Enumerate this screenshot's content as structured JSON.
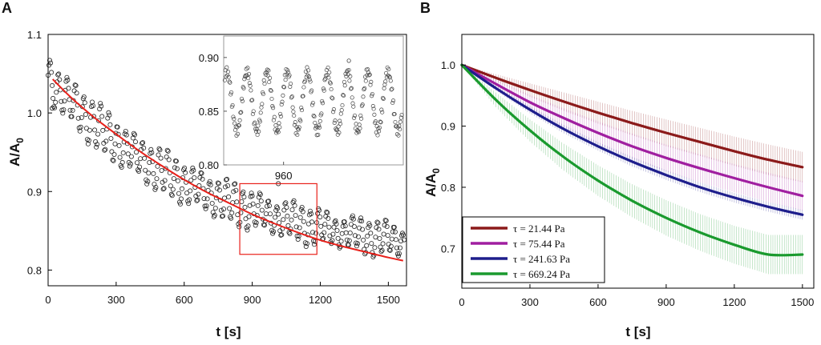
{
  "chart_data": [
    {
      "panel": "A",
      "type": "scatter",
      "xlabel": "t [s]",
      "ylabel_main": "A/A",
      "ylabel_sub": "0",
      "xlim": [
        0,
        1580
      ],
      "ylim": [
        0.78,
        1.1
      ],
      "xticks": [
        0,
        300,
        600,
        900,
        1200,
        1500
      ],
      "yticks": [
        0.8,
        0.9,
        1.0,
        1.1
      ],
      "ytick_labels": [
        "0.8",
        "0.9",
        "1.0",
        "1.1"
      ],
      "series": [
        {
          "name": "data",
          "kind": "oscillating-scatter",
          "color": "#222222",
          "t_max": 1570,
          "sample_step": 3.6,
          "trend_start": 1.045,
          "trend_end": 0.812,
          "trend_tau": 700,
          "amplitude": 0.027,
          "period": 37
        },
        {
          "name": "fit",
          "kind": "line",
          "color": "#e8211b",
          "x": [
            20,
            100,
            200,
            300,
            400,
            500,
            600,
            700,
            800,
            900,
            1000,
            1100,
            1200,
            1300,
            1400,
            1500,
            1565
          ],
          "y": [
            1.043,
            1.02,
            0.995,
            0.973,
            0.952,
            0.933,
            0.915,
            0.899,
            0.885,
            0.871,
            0.859,
            0.848,
            0.838,
            0.83,
            0.823,
            0.816,
            0.812
          ]
        }
      ],
      "highlight_box": {
        "x": [
          845,
          1185
        ],
        "y": [
          0.82,
          0.91
        ],
        "color": "#e8211b"
      },
      "inset": {
        "xlim": [
          850,
          1180
        ],
        "ylim": [
          0.8,
          0.92
        ],
        "yticks": [
          0.8,
          0.85,
          0.9
        ],
        "ytick_labels": [
          "0.80",
          "0.85",
          "0.90"
        ],
        "xtick_label": "960",
        "xtick_value": 960,
        "period": 37,
        "amplitude": 0.028,
        "center": 0.859,
        "sample_step": 1.2,
        "color": "#444444"
      }
    },
    {
      "panel": "B",
      "type": "line",
      "xlabel": "t [s]",
      "ylabel_main": "A/A",
      "ylabel_sub": "0",
      "xlim": [
        0,
        1550
      ],
      "ylim": [
        0.635,
        1.05
      ],
      "xticks": [
        0,
        300,
        600,
        900,
        1200,
        1500
      ],
      "yticks": [
        0.7,
        0.8,
        0.9,
        1.0
      ],
      "ytick_labels": [
        "0.7",
        "0.8",
        "0.9",
        "1.0"
      ],
      "legend_position": "bottom-left",
      "series": [
        {
          "name": "τ = 21.44 Pa",
          "color": "#8b1a1a",
          "x": [
            0,
            150,
            300,
            450,
            600,
            750,
            900,
            1050,
            1200,
            1350,
            1500
          ],
          "y": [
            1.0,
            0.979,
            0.959,
            0.94,
            0.922,
            0.905,
            0.889,
            0.874,
            0.859,
            0.845,
            0.833
          ],
          "err": [
            0.0,
            0.006,
            0.011,
            0.015,
            0.018,
            0.02,
            0.022,
            0.023,
            0.024,
            0.025,
            0.025
          ]
        },
        {
          "name": "τ = 75.44 Pa",
          "color": "#a01fa0",
          "x": [
            0,
            150,
            300,
            450,
            600,
            750,
            900,
            1050,
            1200,
            1350,
            1500
          ],
          "y": [
            1.0,
            0.969,
            0.939,
            0.913,
            0.889,
            0.867,
            0.848,
            0.831,
            0.815,
            0.8,
            0.786
          ],
          "err": [
            0.0,
            0.007,
            0.012,
            0.016,
            0.019,
            0.021,
            0.022,
            0.023,
            0.023,
            0.024,
            0.024
          ]
        },
        {
          "name": "τ = 241.63 Pa",
          "color": "#1e1e8c",
          "x": [
            0,
            150,
            300,
            450,
            600,
            750,
            900,
            1050,
            1200,
            1350,
            1500
          ],
          "y": [
            1.0,
            0.962,
            0.927,
            0.895,
            0.867,
            0.842,
            0.82,
            0.8,
            0.783,
            0.768,
            0.755
          ],
          "err": [
            0.0,
            0.004,
            0.006,
            0.007,
            0.007,
            0.008,
            0.008,
            0.008,
            0.008,
            0.008,
            0.008
          ]
        },
        {
          "name": "τ = 669.24 Pa",
          "color": "#1a9a2e",
          "x": [
            0,
            150,
            300,
            450,
            600,
            750,
            900,
            1050,
            1200,
            1350,
            1500
          ],
          "y": [
            1.0,
            0.943,
            0.893,
            0.849,
            0.811,
            0.778,
            0.75,
            0.726,
            0.706,
            0.69,
            0.69
          ],
          "err": [
            0.0,
            0.012,
            0.018,
            0.022,
            0.025,
            0.027,
            0.029,
            0.03,
            0.031,
            0.032,
            0.032
          ]
        }
      ]
    }
  ]
}
